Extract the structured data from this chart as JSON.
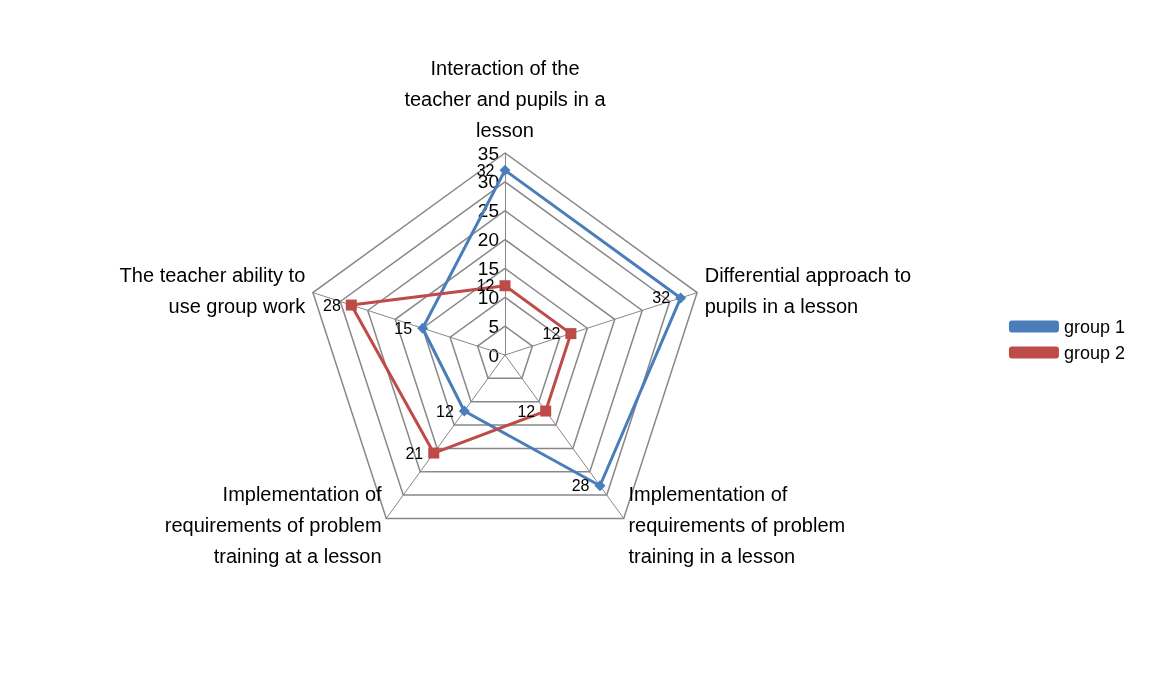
{
  "chart_data": {
    "type": "radar",
    "categories": [
      "Interaction of the teacher and pupils in a lesson",
      "Differential approach to pupils in a lesson",
      "Implementation of requirements of problem training in a lesson",
      "Implementation of requirements of problem training at a lesson",
      "The teacher ability to use group work"
    ],
    "series": [
      {
        "name": "group 1",
        "color": "#4a7ebb",
        "marker": "diamond",
        "values": [
          32,
          32,
          28,
          12,
          15
        ]
      },
      {
        "name": "group 2",
        "color": "#be4b48",
        "marker": "square",
        "values": [
          12,
          12,
          12,
          21,
          28
        ]
      }
    ],
    "ylim": [
      0,
      35
    ],
    "yticks": [
      0,
      5,
      10,
      15,
      20,
      25,
      30,
      35
    ],
    "grid": true,
    "legend": "right",
    "data_labels": true
  }
}
